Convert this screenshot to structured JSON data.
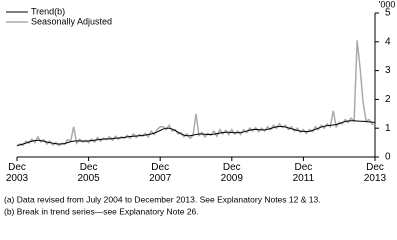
{
  "chart_data": {
    "type": "line",
    "unit_label": "'000",
    "categories": [
      "Dec 2003",
      null,
      null,
      null,
      null,
      null,
      null,
      null,
      null,
      null,
      null,
      null,
      null,
      null,
      null,
      null,
      null,
      null,
      null,
      null,
      null,
      null,
      null,
      null,
      "Dec 2005",
      null,
      null,
      null,
      null,
      null,
      null,
      null,
      null,
      null,
      null,
      null,
      null,
      null,
      null,
      null,
      null,
      null,
      null,
      null,
      null,
      null,
      null,
      null,
      "Dec 2007",
      null,
      null,
      null,
      null,
      null,
      null,
      null,
      null,
      null,
      null,
      null,
      null,
      null,
      null,
      null,
      null,
      null,
      null,
      null,
      null,
      null,
      null,
      null,
      "Dec 2009",
      null,
      null,
      null,
      null,
      null,
      null,
      null,
      null,
      null,
      null,
      null,
      null,
      null,
      null,
      null,
      null,
      null,
      null,
      null,
      null,
      null,
      null,
      null,
      "Dec 2011",
      null,
      null,
      null,
      null,
      null,
      null,
      null,
      null,
      null,
      null,
      null,
      null,
      null,
      null,
      null,
      null,
      null,
      null,
      null,
      null,
      null,
      null,
      null,
      "Dec 2013"
    ],
    "series": [
      {
        "name": "Trend(b)",
        "color": "#000000",
        "width": 1,
        "values": [
          0.4,
          0.42,
          0.45,
          0.48,
          0.52,
          0.55,
          0.57,
          0.58,
          0.57,
          0.55,
          0.52,
          0.5,
          0.48,
          0.46,
          0.45,
          0.45,
          0.47,
          0.5,
          0.53,
          0.55,
          0.56,
          0.56,
          0.55,
          0.55,
          0.56,
          0.57,
          0.58,
          0.6,
          0.61,
          0.62,
          0.63,
          0.63,
          0.64,
          0.65,
          0.66,
          0.67,
          0.68,
          0.7,
          0.71,
          0.72,
          0.73,
          0.74,
          0.75,
          0.76,
          0.78,
          0.8,
          0.83,
          0.87,
          0.92,
          0.97,
          1.0,
          1.0,
          0.97,
          0.92,
          0.86,
          0.8,
          0.76,
          0.74,
          0.74,
          0.76,
          0.78,
          0.8,
          0.8,
          0.79,
          0.78,
          0.78,
          0.79,
          0.81,
          0.83,
          0.85,
          0.86,
          0.86,
          0.85,
          0.84,
          0.84,
          0.85,
          0.87,
          0.9,
          0.93,
          0.95,
          0.96,
          0.95,
          0.94,
          0.94,
          0.96,
          0.99,
          1.02,
          1.05,
          1.06,
          1.06,
          1.04,
          1.01,
          0.98,
          0.95,
          0.92,
          0.9,
          0.89,
          0.88,
          0.89,
          0.92,
          0.96,
          1.0,
          1.04,
          1.07,
          1.09,
          1.1,
          1.11,
          1.13,
          1.16,
          1.2,
          1.23,
          1.25,
          1.26,
          1.26,
          1.25,
          1.24,
          1.24,
          1.23,
          1.22,
          1.21,
          1.2
        ]
      },
      {
        "name": "Seasonally Adjusted",
        "color": "#aaaaaa",
        "width": 1.5,
        "values": [
          0.38,
          0.45,
          0.4,
          0.55,
          0.48,
          0.62,
          0.5,
          0.7,
          0.52,
          0.6,
          0.45,
          0.55,
          0.42,
          0.5,
          0.4,
          0.48,
          0.44,
          0.6,
          0.55,
          1.05,
          0.48,
          0.62,
          0.52,
          0.58,
          0.5,
          0.62,
          0.52,
          0.68,
          0.55,
          0.65,
          0.6,
          0.7,
          0.58,
          0.72,
          0.62,
          0.7,
          0.65,
          0.75,
          0.65,
          0.8,
          0.68,
          0.78,
          0.72,
          0.82,
          0.7,
          0.9,
          0.78,
          0.95,
          1.05,
          1.05,
          0.95,
          1.1,
          0.9,
          0.95,
          0.8,
          0.85,
          0.7,
          0.8,
          0.65,
          0.75,
          1.5,
          0.75,
          0.85,
          0.7,
          0.82,
          0.75,
          0.9,
          0.72,
          0.95,
          0.8,
          0.92,
          0.78,
          0.95,
          0.8,
          0.9,
          0.78,
          0.95,
          0.85,
          1.0,
          0.9,
          1.02,
          0.88,
          1.0,
          0.9,
          1.05,
          0.95,
          1.1,
          1.0,
          1.15,
          1.02,
          1.1,
          0.95,
          1.05,
          0.9,
          1.0,
          0.85,
          0.95,
          0.82,
          0.95,
          0.88,
          1.05,
          0.95,
          1.1,
          1.0,
          1.15,
          1.05,
          1.6,
          1.05,
          1.2,
          1.15,
          1.3,
          1.2,
          1.35,
          1.25,
          4.05,
          3.1,
          1.9,
          1.25,
          1.3,
          1.15,
          1.1
        ]
      }
    ],
    "ylim": [
      0,
      5
    ],
    "yticks": [
      0,
      1,
      2,
      3,
      4,
      5
    ],
    "footnotes": [
      "(a) Data revised from July 2004 to December 2013. See Explanatory Notes 12 & 13.",
      "(b) Break in trend series—see Explanatory Note 26."
    ]
  }
}
